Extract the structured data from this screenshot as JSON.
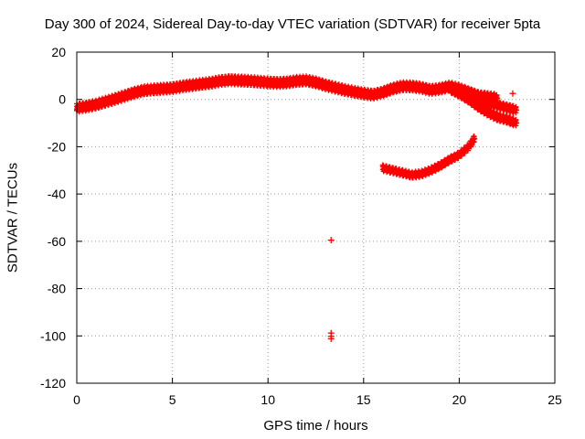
{
  "chart_data": {
    "type": "scatter",
    "title": "Day 300 of 2024, Sidereal Day-to-day VTEC variation (SDTVAR) for receiver 5pta",
    "xlabel": "GPS time / hours",
    "ylabel": "SDTVAR / TECUs",
    "xlim": [
      0,
      25
    ],
    "ylim": [
      -120,
      20
    ],
    "xticks": [
      0,
      5,
      10,
      15,
      20,
      25
    ],
    "yticks": [
      20,
      0,
      -20,
      -40,
      -60,
      -80,
      -100,
      -120
    ],
    "grid": true,
    "legend": "none",
    "marker": "+",
    "series": [
      {
        "name": "main band",
        "color": "#ff0000",
        "thickness": 2.5,
        "points": [
          [
            0.0,
            -3.5
          ],
          [
            0.5,
            -3
          ],
          [
            1,
            -2.2
          ],
          [
            1.5,
            -1
          ],
          [
            2,
            0.2
          ],
          [
            2.5,
            1.5
          ],
          [
            3,
            2.8
          ],
          [
            3.5,
            3.8
          ],
          [
            4,
            4.2
          ],
          [
            4.5,
            4.5
          ],
          [
            5,
            4.8
          ],
          [
            5.5,
            5.5
          ],
          [
            6,
            6
          ],
          [
            6.5,
            6.5
          ],
          [
            7,
            7
          ],
          [
            7.5,
            7.8
          ],
          [
            8,
            8.2
          ],
          [
            8.5,
            8
          ],
          [
            9,
            7.8
          ],
          [
            9.5,
            7.5
          ],
          [
            10,
            7.2
          ],
          [
            10.5,
            7
          ],
          [
            11,
            7.2
          ],
          [
            11.5,
            7.8
          ],
          [
            12,
            8
          ],
          [
            12.5,
            7.2
          ],
          [
            13,
            6
          ],
          [
            13.5,
            5
          ],
          [
            14,
            4
          ],
          [
            14.5,
            3.2
          ],
          [
            15,
            2.5
          ],
          [
            15.5,
            2
          ],
          [
            16,
            3
          ],
          [
            16.5,
            4.5
          ],
          [
            17,
            5.5
          ],
          [
            17.5,
            5.5
          ],
          [
            18,
            5
          ],
          [
            18.5,
            4
          ],
          [
            19,
            4.5
          ],
          [
            19.5,
            5.5
          ],
          [
            20,
            4.5
          ],
          [
            20.5,
            3
          ],
          [
            21,
            1.5
          ],
          [
            21.5,
            1
          ],
          [
            22,
            0.5
          ]
        ]
      },
      {
        "name": "upper branch",
        "color": "#ff0000",
        "thickness": 2,
        "points": [
          [
            19.5,
            5.5
          ],
          [
            20,
            3.8
          ],
          [
            20.5,
            1.8
          ],
          [
            21,
            0
          ],
          [
            21.5,
            -1.5
          ],
          [
            22,
            -2.5
          ],
          [
            22.5,
            -3.5
          ],
          [
            23,
            -4.5
          ]
        ]
      },
      {
        "name": "lower branch",
        "color": "#ff0000",
        "thickness": 2,
        "points": [
          [
            19.5,
            4.5
          ],
          [
            20,
            2.5
          ],
          [
            20.5,
            0
          ],
          [
            21,
            -3
          ],
          [
            21.5,
            -5.5
          ],
          [
            22,
            -7.5
          ],
          [
            22.5,
            -8.5
          ],
          [
            23,
            -10
          ]
        ]
      },
      {
        "name": "satellite arc",
        "color": "#ff0000",
        "thickness": 1.5,
        "points": [
          [
            16,
            -29
          ],
          [
            16.5,
            -30
          ],
          [
            17,
            -31
          ],
          [
            17.5,
            -32
          ],
          [
            18,
            -31.5
          ],
          [
            18.5,
            -30
          ],
          [
            19,
            -28
          ],
          [
            19.5,
            -25.5
          ],
          [
            20,
            -23.5
          ],
          [
            20.5,
            -20
          ],
          [
            20.8,
            -16.5
          ]
        ]
      },
      {
        "name": "isolated points",
        "color": "#ff0000",
        "thickness": 0,
        "points": [
          [
            22.8,
            2.5
          ],
          [
            13.3,
            -59.5
          ],
          [
            13.3,
            -98.8
          ],
          [
            13.3,
            -100.2
          ],
          [
            13.3,
            -101.2
          ]
        ]
      }
    ]
  }
}
